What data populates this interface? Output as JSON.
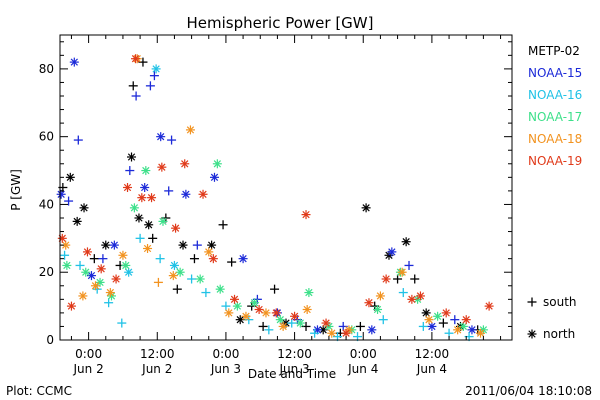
{
  "chart_data": {
    "type": "scatter",
    "title": "Hemispheric Power [GW]",
    "ylabel": "P [GW]",
    "xlabel": "Date and Time",
    "x_unit": "hours since 2011-06-02 00:00 UT",
    "xlim": [
      -5,
      74
    ],
    "ylim": [
      0,
      90
    ],
    "y_ticks": [
      0,
      20,
      40,
      60,
      80
    ],
    "x_ticks": [
      {
        "value": 0,
        "time": "0:00",
        "date": "Jun 2"
      },
      {
        "value": 12,
        "time": "12:00",
        "date": "Jun 2"
      },
      {
        "value": 24,
        "time": "0:00",
        "date": "Jun 3"
      },
      {
        "value": 36,
        "time": "12:00",
        "date": "Jun 3"
      },
      {
        "value": 48,
        "time": "0:00",
        "date": "Jun 4"
      },
      {
        "value": 60,
        "time": "12:00",
        "date": "Jun 4"
      }
    ],
    "grid": false,
    "legend_position": "right",
    "marker_legend": [
      {
        "symbol": "+",
        "label": "south"
      },
      {
        "symbol": "*",
        "label": "north"
      }
    ],
    "series": [
      {
        "name": "METP-02",
        "color": "#000000",
        "points": [
          {
            "x": -4.5,
            "y": 45,
            "m": "+"
          },
          {
            "x": -3.2,
            "y": 48,
            "m": "*"
          },
          {
            "x": -2,
            "y": 35,
            "m": "*"
          },
          {
            "x": -0.8,
            "y": 39,
            "m": "*"
          },
          {
            "x": 1,
            "y": 24,
            "m": "+"
          },
          {
            "x": 3,
            "y": 28,
            "m": "*"
          },
          {
            "x": 5.5,
            "y": 22,
            "m": "+"
          },
          {
            "x": 7.5,
            "y": 54,
            "m": "*"
          },
          {
            "x": 7.8,
            "y": 75,
            "m": "+"
          },
          {
            "x": 8.8,
            "y": 36,
            "m": "*"
          },
          {
            "x": 9.5,
            "y": 82,
            "m": "+"
          },
          {
            "x": 10.5,
            "y": 34,
            "m": "*"
          },
          {
            "x": 11.2,
            "y": 30,
            "m": "+"
          },
          {
            "x": 13.5,
            "y": 36,
            "m": "+"
          },
          {
            "x": 15.5,
            "y": 15,
            "m": "+"
          },
          {
            "x": 16.5,
            "y": 28,
            "m": "*"
          },
          {
            "x": 18.5,
            "y": 24,
            "m": "+"
          },
          {
            "x": 21.5,
            "y": 28,
            "m": "*"
          },
          {
            "x": 23.5,
            "y": 34,
            "m": "+"
          },
          {
            "x": 25,
            "y": 23,
            "m": "+"
          },
          {
            "x": 26.5,
            "y": 6,
            "m": "*"
          },
          {
            "x": 28.5,
            "y": 10,
            "m": "+"
          },
          {
            "x": 30.5,
            "y": 4,
            "m": "+"
          },
          {
            "x": 32.5,
            "y": 15,
            "m": "+"
          },
          {
            "x": 34.5,
            "y": 5,
            "m": "*"
          },
          {
            "x": 38,
            "y": 4,
            "m": "+"
          },
          {
            "x": 41,
            "y": 3,
            "m": "*"
          },
          {
            "x": 44,
            "y": 2,
            "m": "+"
          },
          {
            "x": 47.5,
            "y": 4,
            "m": "+"
          },
          {
            "x": 48.5,
            "y": 39,
            "m": "*"
          },
          {
            "x": 50,
            "y": 10,
            "m": "+"
          },
          {
            "x": 52.5,
            "y": 25,
            "m": "*"
          },
          {
            "x": 54,
            "y": 18,
            "m": "+"
          },
          {
            "x": 55.5,
            "y": 29,
            "m": "*"
          },
          {
            "x": 57,
            "y": 18,
            "m": "+"
          },
          {
            "x": 59,
            "y": 8,
            "m": "*"
          },
          {
            "x": 62,
            "y": 5,
            "m": "+"
          },
          {
            "x": 65,
            "y": 4,
            "m": "*"
          },
          {
            "x": 68,
            "y": 3,
            "m": "+"
          }
        ]
      },
      {
        "name": "NOAA-15",
        "color": "#1c2ad8",
        "points": [
          {
            "x": -4.8,
            "y": 43,
            "m": "*"
          },
          {
            "x": -2.5,
            "y": 82,
            "m": "*"
          },
          {
            "x": -1.8,
            "y": 59,
            "m": "+"
          },
          {
            "x": -3.5,
            "y": 41,
            "m": "+"
          },
          {
            "x": 0.5,
            "y": 19,
            "m": "*"
          },
          {
            "x": 2.5,
            "y": 24,
            "m": "+"
          },
          {
            "x": 4.5,
            "y": 28,
            "m": "*"
          },
          {
            "x": 7.2,
            "y": 50,
            "m": "+"
          },
          {
            "x": 8.3,
            "y": 72,
            "m": "+"
          },
          {
            "x": 9.8,
            "y": 45,
            "m": "*"
          },
          {
            "x": 10.8,
            "y": 75,
            "m": "+"
          },
          {
            "x": 11.5,
            "y": 78,
            "m": "+"
          },
          {
            "x": 12.6,
            "y": 60,
            "m": "*"
          },
          {
            "x": 14.5,
            "y": 59,
            "m": "+"
          },
          {
            "x": 14,
            "y": 44,
            "m": "+"
          },
          {
            "x": 17,
            "y": 43,
            "m": "*"
          },
          {
            "x": 19,
            "y": 28,
            "m": "+"
          },
          {
            "x": 22,
            "y": 48,
            "m": "*"
          },
          {
            "x": 27,
            "y": 24,
            "m": "*"
          },
          {
            "x": 29.5,
            "y": 12,
            "m": "+"
          },
          {
            "x": 33,
            "y": 8,
            "m": "*"
          },
          {
            "x": 36.5,
            "y": 6,
            "m": "+"
          },
          {
            "x": 40,
            "y": 3,
            "m": "*"
          },
          {
            "x": 44.5,
            "y": 4,
            "m": "+"
          },
          {
            "x": 49.5,
            "y": 3,
            "m": "*"
          },
          {
            "x": 53,
            "y": 26,
            "m": "*"
          },
          {
            "x": 56,
            "y": 22,
            "m": "+"
          },
          {
            "x": 60,
            "y": 4,
            "m": "*"
          },
          {
            "x": 64,
            "y": 6,
            "m": "+"
          },
          {
            "x": 67,
            "y": 3,
            "m": "*"
          }
        ]
      },
      {
        "name": "NOAA-16",
        "color": "#21c2e6",
        "points": [
          {
            "x": -4.2,
            "y": 25,
            "m": "+"
          },
          {
            "x": -1.5,
            "y": 22,
            "m": "+"
          },
          {
            "x": 1.5,
            "y": 15,
            "m": "+"
          },
          {
            "x": 3.5,
            "y": 11,
            "m": "+"
          },
          {
            "x": 5.8,
            "y": 5,
            "m": "+"
          },
          {
            "x": 7,
            "y": 20,
            "m": "*"
          },
          {
            "x": 9,
            "y": 30,
            "m": "+"
          },
          {
            "x": 11.8,
            "y": 80,
            "m": "*"
          },
          {
            "x": 12.5,
            "y": 24,
            "m": "+"
          },
          {
            "x": 15,
            "y": 22,
            "m": "*"
          },
          {
            "x": 18,
            "y": 18,
            "m": "+"
          },
          {
            "x": 20.5,
            "y": 14,
            "m": "+"
          },
          {
            "x": 24,
            "y": 10,
            "m": "+"
          },
          {
            "x": 28,
            "y": 6,
            "m": "+"
          },
          {
            "x": 31.5,
            "y": 3,
            "m": "+"
          },
          {
            "x": 35.5,
            "y": 5,
            "m": "+"
          },
          {
            "x": 39.5,
            "y": 2,
            "m": "+"
          },
          {
            "x": 43.5,
            "y": 1,
            "m": "+"
          },
          {
            "x": 47,
            "y": 1,
            "m": "+"
          },
          {
            "x": 51.5,
            "y": 6,
            "m": "+"
          },
          {
            "x": 55,
            "y": 14,
            "m": "+"
          },
          {
            "x": 58.5,
            "y": 4,
            "m": "+"
          },
          {
            "x": 63,
            "y": 2,
            "m": "+"
          },
          {
            "x": 66.5,
            "y": 1,
            "m": "+"
          }
        ]
      },
      {
        "name": "NOAA-17",
        "color": "#3de08a",
        "points": [
          {
            "x": -3.8,
            "y": 22,
            "m": "*"
          },
          {
            "x": -0.5,
            "y": 20,
            "m": "*"
          },
          {
            "x": 2,
            "y": 17,
            "m": "*"
          },
          {
            "x": 4,
            "y": 13,
            "m": "*"
          },
          {
            "x": 6.5,
            "y": 22,
            "m": "*"
          },
          {
            "x": 8,
            "y": 39,
            "m": "*"
          },
          {
            "x": 10,
            "y": 50,
            "m": "*"
          },
          {
            "x": 13,
            "y": 35,
            "m": "*"
          },
          {
            "x": 16,
            "y": 20,
            "m": "*"
          },
          {
            "x": 19.5,
            "y": 18,
            "m": "*"
          },
          {
            "x": 22.5,
            "y": 52,
            "m": "*"
          },
          {
            "x": 23,
            "y": 15,
            "m": "*"
          },
          {
            "x": 26,
            "y": 10,
            "m": "*"
          },
          {
            "x": 29,
            "y": 11,
            "m": "*"
          },
          {
            "x": 33.5,
            "y": 6,
            "m": "*"
          },
          {
            "x": 37,
            "y": 5,
            "m": "*"
          },
          {
            "x": 38.5,
            "y": 14,
            "m": "*"
          },
          {
            "x": 42,
            "y": 4,
            "m": "*"
          },
          {
            "x": 46,
            "y": 3,
            "m": "*"
          },
          {
            "x": 50.5,
            "y": 9,
            "m": "*"
          },
          {
            "x": 54.5,
            "y": 20,
            "m": "*"
          },
          {
            "x": 57.5,
            "y": 12,
            "m": "*"
          },
          {
            "x": 61,
            "y": 7,
            "m": "*"
          },
          {
            "x": 65.5,
            "y": 4,
            "m": "*"
          },
          {
            "x": 69,
            "y": 3,
            "m": "*"
          }
        ]
      },
      {
        "name": "NOAA-18",
        "color": "#f29320",
        "points": [
          {
            "x": -4,
            "y": 28,
            "m": "*"
          },
          {
            "x": -1,
            "y": 13,
            "m": "*"
          },
          {
            "x": 1.2,
            "y": 16,
            "m": "*"
          },
          {
            "x": 3.8,
            "y": 14,
            "m": "*"
          },
          {
            "x": 6,
            "y": 25,
            "m": "*"
          },
          {
            "x": 8.5,
            "y": 83,
            "m": "*"
          },
          {
            "x": 10.3,
            "y": 27,
            "m": "*"
          },
          {
            "x": 12.2,
            "y": 17,
            "m": "+"
          },
          {
            "x": 14.8,
            "y": 19,
            "m": "*"
          },
          {
            "x": 17.8,
            "y": 62,
            "m": "*"
          },
          {
            "x": 21,
            "y": 26,
            "m": "*"
          },
          {
            "x": 24.5,
            "y": 8,
            "m": "*"
          },
          {
            "x": 27.5,
            "y": 7,
            "m": "*"
          },
          {
            "x": 31,
            "y": 8,
            "m": "*"
          },
          {
            "x": 34,
            "y": 4,
            "m": "*"
          },
          {
            "x": 38.2,
            "y": 9,
            "m": "*"
          },
          {
            "x": 42.5,
            "y": 2,
            "m": "*"
          },
          {
            "x": 45.5,
            "y": 3,
            "m": "*"
          },
          {
            "x": 51,
            "y": 13,
            "m": "*"
          },
          {
            "x": 54.8,
            "y": 20,
            "m": "*"
          },
          {
            "x": 59.5,
            "y": 6,
            "m": "*"
          },
          {
            "x": 64.5,
            "y": 3,
            "m": "*"
          },
          {
            "x": 68.5,
            "y": 2,
            "m": "*"
          }
        ]
      },
      {
        "name": "NOAA-19",
        "color": "#e03a1a",
        "points": [
          {
            "x": -4.6,
            "y": 30,
            "m": "*"
          },
          {
            "x": -3,
            "y": 10,
            "m": "*"
          },
          {
            "x": -0.2,
            "y": 26,
            "m": "*"
          },
          {
            "x": 2.2,
            "y": 21,
            "m": "*"
          },
          {
            "x": 4.8,
            "y": 18,
            "m": "*"
          },
          {
            "x": 6.8,
            "y": 45,
            "m": "*"
          },
          {
            "x": 8.2,
            "y": 83,
            "m": "*"
          },
          {
            "x": 9.3,
            "y": 42,
            "m": "*"
          },
          {
            "x": 11,
            "y": 42,
            "m": "*"
          },
          {
            "x": 12.8,
            "y": 51,
            "m": "*"
          },
          {
            "x": 15.2,
            "y": 33,
            "m": "*"
          },
          {
            "x": 16.8,
            "y": 52,
            "m": "*"
          },
          {
            "x": 20,
            "y": 43,
            "m": "*"
          },
          {
            "x": 21.8,
            "y": 24,
            "m": "*"
          },
          {
            "x": 25.5,
            "y": 12,
            "m": "*"
          },
          {
            "x": 29.8,
            "y": 9,
            "m": "*"
          },
          {
            "x": 32.8,
            "y": 8,
            "m": "*"
          },
          {
            "x": 36,
            "y": 7,
            "m": "*"
          },
          {
            "x": 38,
            "y": 37,
            "m": "*"
          },
          {
            "x": 41.5,
            "y": 5,
            "m": "*"
          },
          {
            "x": 45,
            "y": 2,
            "m": "*"
          },
          {
            "x": 49,
            "y": 11,
            "m": "*"
          },
          {
            "x": 52,
            "y": 18,
            "m": "*"
          },
          {
            "x": 56.5,
            "y": 12,
            "m": "*"
          },
          {
            "x": 58,
            "y": 13,
            "m": "*"
          },
          {
            "x": 62.5,
            "y": 8,
            "m": "*"
          },
          {
            "x": 66,
            "y": 6,
            "m": "*"
          },
          {
            "x": 70,
            "y": 10,
            "m": "*"
          }
        ]
      }
    ]
  },
  "footer": {
    "left": "Plot: CCMC",
    "right": "2011/06/04 18:10:08"
  }
}
